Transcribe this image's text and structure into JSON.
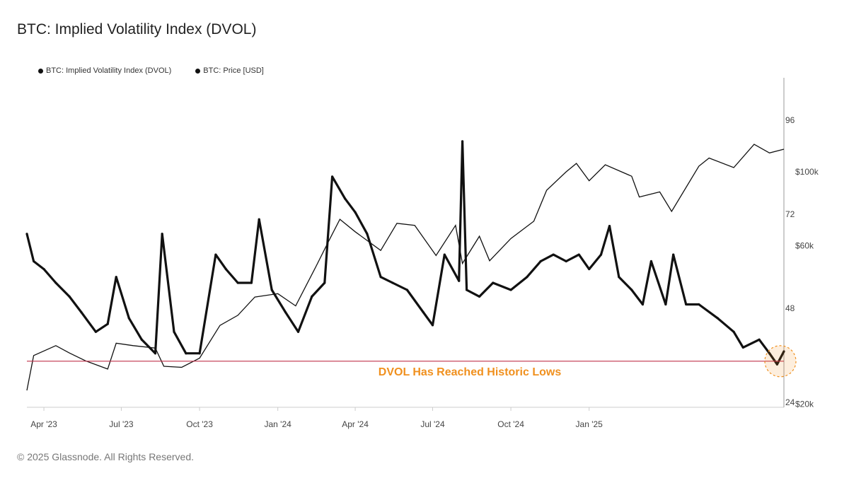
{
  "chart_data": {
    "type": "line",
    "title": "BTC: Implied Volatility Index (DVOL)",
    "legend_position": "top-left",
    "grid": false,
    "x_ticks": [
      {
        "label": "Apr '23",
        "date": "2023-04-01"
      },
      {
        "label": "Jul '23",
        "date": "2023-07-01"
      },
      {
        "label": "Oct '23",
        "date": "2023-10-01"
      },
      {
        "label": "Jan '24",
        "date": "2024-01-01"
      },
      {
        "label": "Apr '24",
        "date": "2024-04-01"
      },
      {
        "label": "Jul '24",
        "date": "2024-07-01"
      },
      {
        "label": "Oct '24",
        "date": "2024-10-01"
      },
      {
        "label": "Jan '25",
        "date": "2025-01-01"
      }
    ],
    "x_range": [
      "2023-03-12",
      "2025-08-18"
    ],
    "y_left": {
      "ticks": [
        "96",
        "72",
        "48",
        "24"
      ],
      "range": [
        24,
        104
      ]
    },
    "y_right": {
      "scale": "log",
      "ticks": [
        {
          "label": "$100k",
          "value": 100000
        },
        {
          "label": "$60k",
          "value": 60000
        },
        {
          "label": "$20k",
          "value": 20000
        }
      ]
    },
    "series": [
      {
        "name": "BTC: Implied Volatility Index (DVOL)",
        "axis": "left",
        "color": "#111111",
        "points": [
          [
            "2023-03-12",
            67
          ],
          [
            "2023-03-20",
            60
          ],
          [
            "2023-04-01",
            58
          ],
          [
            "2023-04-15",
            54.5
          ],
          [
            "2023-05-01",
            51
          ],
          [
            "2023-05-15",
            47
          ],
          [
            "2023-06-01",
            42
          ],
          [
            "2023-06-15",
            44
          ],
          [
            "2023-06-25",
            56
          ],
          [
            "2023-07-10",
            45.5
          ],
          [
            "2023-07-25",
            40
          ],
          [
            "2023-08-10",
            36.5
          ],
          [
            "2023-08-18",
            67
          ],
          [
            "2023-09-01",
            42
          ],
          [
            "2023-09-15",
            36.5
          ],
          [
            "2023-10-01",
            36.5
          ],
          [
            "2023-10-20",
            61.7
          ],
          [
            "2023-11-01",
            58
          ],
          [
            "2023-11-15",
            54.5
          ],
          [
            "2023-12-01",
            54.5
          ],
          [
            "2023-12-10",
            70.7
          ],
          [
            "2023-12-25",
            52.7
          ],
          [
            "2024-01-10",
            47
          ],
          [
            "2024-01-25",
            42
          ],
          [
            "2024-02-10",
            51
          ],
          [
            "2024-02-25",
            54.5
          ],
          [
            "2024-03-05",
            81.6
          ],
          [
            "2024-03-20",
            76
          ],
          [
            "2024-04-01",
            72.5
          ],
          [
            "2024-04-15",
            67
          ],
          [
            "2024-05-01",
            56
          ],
          [
            "2024-05-15",
            54.5
          ],
          [
            "2024-06-01",
            52.7
          ],
          [
            "2024-06-20",
            47
          ],
          [
            "2024-07-01",
            43.7
          ],
          [
            "2024-07-15",
            61.7
          ],
          [
            "2024-08-01",
            55
          ],
          [
            "2024-08-05",
            90.6
          ],
          [
            "2024-08-10",
            52.7
          ],
          [
            "2024-08-25",
            51
          ],
          [
            "2024-09-10",
            54.5
          ],
          [
            "2024-10-01",
            52.7
          ],
          [
            "2024-10-20",
            56
          ],
          [
            "2024-11-05",
            60
          ],
          [
            "2024-11-20",
            61.7
          ],
          [
            "2024-12-05",
            60
          ],
          [
            "2024-12-20",
            61.7
          ],
          [
            "2025-01-01",
            58
          ],
          [
            "2025-01-15",
            61.7
          ],
          [
            "2025-01-25",
            69
          ],
          [
            "2025-02-05",
            56
          ],
          [
            "2025-02-20",
            52.7
          ],
          [
            "2025-03-05",
            49
          ],
          [
            "2025-03-15",
            60
          ],
          [
            "2025-04-01",
            49
          ],
          [
            "2025-04-10",
            61.7
          ],
          [
            "2025-04-25",
            49
          ],
          [
            "2025-05-10",
            49
          ],
          [
            "2025-06-01",
            45.5
          ],
          [
            "2025-06-20",
            42
          ],
          [
            "2025-07-01",
            38
          ],
          [
            "2025-07-20",
            40
          ],
          [
            "2025-08-01",
            36.5
          ],
          [
            "2025-08-10",
            33.7
          ],
          [
            "2025-08-18",
            37
          ]
        ]
      },
      {
        "name": "BTC: Price [USD]",
        "axis": "right",
        "color": "#111111",
        "points": [
          [
            "2023-03-12",
            22000
          ],
          [
            "2023-03-20",
            28000
          ],
          [
            "2023-04-15",
            30000
          ],
          [
            "2023-05-01",
            28500
          ],
          [
            "2023-05-20",
            27000
          ],
          [
            "2023-06-15",
            25500
          ],
          [
            "2023-06-25",
            30500
          ],
          [
            "2023-07-15",
            30000
          ],
          [
            "2023-08-10",
            29500
          ],
          [
            "2023-08-20",
            26000
          ],
          [
            "2023-09-10",
            25800
          ],
          [
            "2023-10-01",
            27500
          ],
          [
            "2023-10-25",
            34500
          ],
          [
            "2023-11-15",
            37000
          ],
          [
            "2023-12-05",
            42000
          ],
          [
            "2024-01-01",
            43000
          ],
          [
            "2024-01-22",
            39500
          ],
          [
            "2024-02-15",
            52000
          ],
          [
            "2024-03-01",
            62000
          ],
          [
            "2024-03-14",
            72000
          ],
          [
            "2024-04-01",
            66000
          ],
          [
            "2024-05-01",
            58000
          ],
          [
            "2024-05-20",
            70000
          ],
          [
            "2024-06-10",
            69000
          ],
          [
            "2024-07-05",
            56000
          ],
          [
            "2024-07-28",
            69000
          ],
          [
            "2024-08-05",
            53000
          ],
          [
            "2024-08-25",
            64000
          ],
          [
            "2024-09-06",
            54000
          ],
          [
            "2024-10-01",
            63000
          ],
          [
            "2024-10-28",
            71000
          ],
          [
            "2024-11-12",
            88000
          ],
          [
            "2024-12-05",
            100000
          ],
          [
            "2024-12-17",
            106000
          ],
          [
            "2025-01-01",
            94000
          ],
          [
            "2025-01-20",
            105000
          ],
          [
            "2025-02-20",
            97000
          ],
          [
            "2025-03-01",
            84000
          ],
          [
            "2025-03-25",
            87000
          ],
          [
            "2025-04-08",
            76000
          ],
          [
            "2025-05-10",
            104000
          ],
          [
            "2025-05-22",
            110000
          ],
          [
            "2025-06-20",
            103000
          ],
          [
            "2025-07-14",
            121000
          ],
          [
            "2025-08-01",
            114000
          ],
          [
            "2025-08-18",
            117000
          ]
        ]
      }
    ],
    "reference_line": {
      "value": 34.5,
      "color": "#c0304a"
    },
    "annotation": {
      "text": "DVOL Has Reached Historic Lows",
      "color": "#f0901e"
    }
  },
  "footer": "© 2025 Glassnode. All Rights Reserved."
}
